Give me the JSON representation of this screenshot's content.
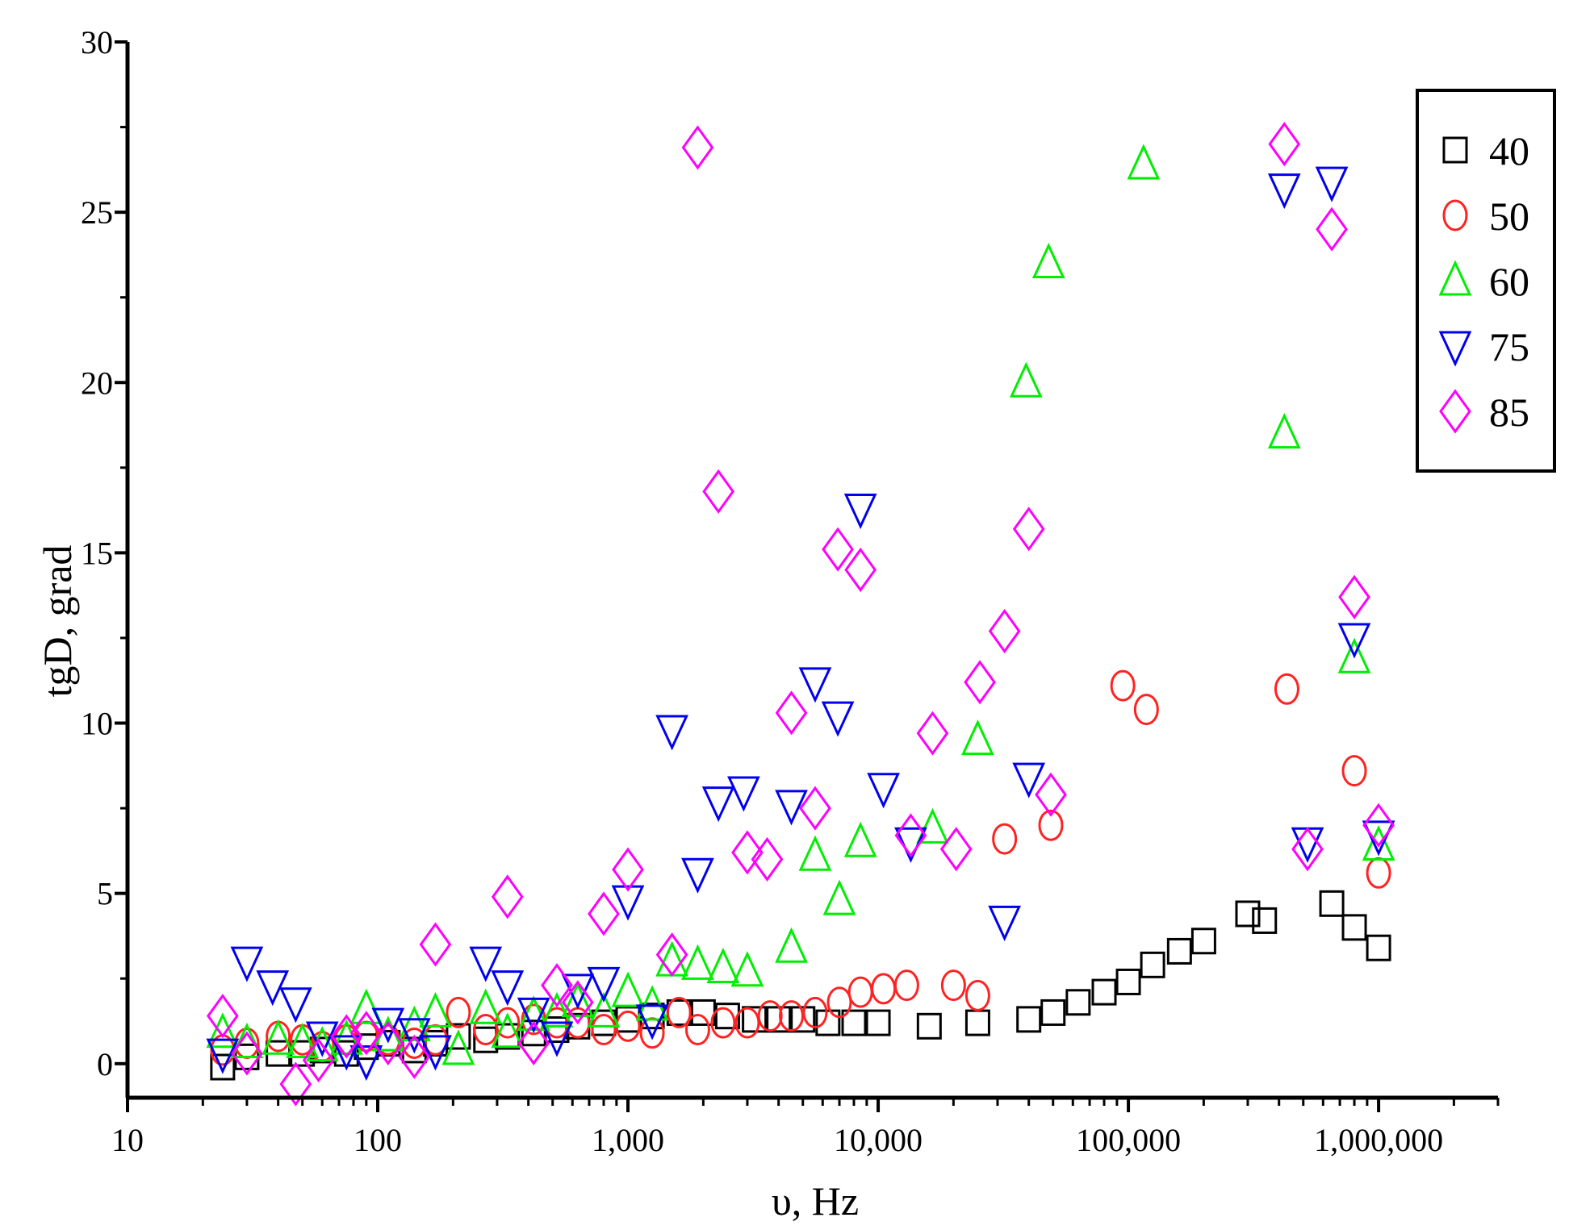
{
  "chart_data": {
    "type": "scatter",
    "xlabel": "υ, Hz",
    "ylabel": "tgD, grad",
    "xscale": "log",
    "xlim": [
      10,
      3000000
    ],
    "ylim": [
      -1,
      30
    ],
    "x_ticks": [
      10,
      100,
      1000,
      10000,
      100000,
      1000000
    ],
    "x_tick_labels": [
      "10",
      "100",
      "1,000",
      "10,000",
      "100,000",
      "1,000,000"
    ],
    "y_ticks": [
      0,
      5,
      10,
      15,
      20,
      25,
      30
    ],
    "y_tick_labels": [
      "0",
      "5",
      "10",
      "15",
      "20",
      "25",
      "30"
    ],
    "legend_position": "top-right",
    "series": [
      {
        "name": "40",
        "marker": "square",
        "color": "#000000",
        "points": [
          [
            24,
            -0.1
          ],
          [
            30,
            0.2
          ],
          [
            40,
            0.3
          ],
          [
            50,
            0.3
          ],
          [
            60,
            0.4
          ],
          [
            75,
            0.3
          ],
          [
            90,
            0.5
          ],
          [
            110,
            0.6
          ],
          [
            140,
            0.4
          ],
          [
            170,
            0.6
          ],
          [
            210,
            0.8
          ],
          [
            270,
            0.7
          ],
          [
            330,
            0.8
          ],
          [
            420,
            0.9
          ],
          [
            520,
            1.0
          ],
          [
            630,
            1.1
          ],
          [
            800,
            1.2
          ],
          [
            1000,
            1.3
          ],
          [
            1250,
            1.4
          ],
          [
            1600,
            1.5
          ],
          [
            2000,
            1.5
          ],
          [
            2500,
            1.4
          ],
          [
            3200,
            1.3
          ],
          [
            4000,
            1.3
          ],
          [
            5000,
            1.3
          ],
          [
            6300,
            1.2
          ],
          [
            8000,
            1.2
          ],
          [
            10000,
            1.2
          ],
          [
            16000,
            1.1
          ],
          [
            25000,
            1.2
          ],
          [
            40000,
            1.3
          ],
          [
            50000,
            1.5
          ],
          [
            63000,
            1.8
          ],
          [
            80000,
            2.1
          ],
          [
            100000,
            2.4
          ],
          [
            125000,
            2.9
          ],
          [
            160000,
            3.3
          ],
          [
            200000,
            3.6
          ],
          [
            300000,
            4.4
          ],
          [
            350000,
            4.2
          ],
          [
            650000,
            4.7
          ],
          [
            800000,
            4.0
          ],
          [
            1000000,
            3.4
          ]
        ]
      },
      {
        "name": "50",
        "marker": "circle",
        "color": "#ff2222",
        "points": [
          [
            24,
            0.4
          ],
          [
            30,
            0.6
          ],
          [
            40,
            0.8
          ],
          [
            50,
            0.7
          ],
          [
            60,
            0.5
          ],
          [
            75,
            0.7
          ],
          [
            90,
            0.8
          ],
          [
            110,
            0.7
          ],
          [
            140,
            0.6
          ],
          [
            170,
            0.7
          ],
          [
            210,
            1.5
          ],
          [
            270,
            1.0
          ],
          [
            330,
            1.2
          ],
          [
            420,
            1.3
          ],
          [
            520,
            1.2
          ],
          [
            630,
            1.2
          ],
          [
            800,
            1.0
          ],
          [
            1000,
            1.1
          ],
          [
            1250,
            0.9
          ],
          [
            1600,
            1.5
          ],
          [
            1900,
            1.0
          ],
          [
            2400,
            1.2
          ],
          [
            3000,
            1.2
          ],
          [
            3700,
            1.4
          ],
          [
            4500,
            1.4
          ],
          [
            5600,
            1.5
          ],
          [
            7000,
            1.8
          ],
          [
            8500,
            2.1
          ],
          [
            10500,
            2.2
          ],
          [
            13000,
            2.3
          ],
          [
            20000,
            2.3
          ],
          [
            25000,
            2.0
          ],
          [
            32000,
            6.6
          ],
          [
            49000,
            7.0
          ],
          [
            95000,
            11.1
          ],
          [
            118000,
            10.4
          ],
          [
            430000,
            11.0
          ],
          [
            800000,
            8.6
          ],
          [
            1000000,
            5.6
          ]
        ]
      },
      {
        "name": "60",
        "marker": "triangle-up",
        "color": "#00ee00",
        "points": [
          [
            24,
            0.9
          ],
          [
            30,
            0.6
          ],
          [
            40,
            0.7
          ],
          [
            50,
            0.6
          ],
          [
            60,
            0.5
          ],
          [
            75,
            0.7
          ],
          [
            90,
            1.6
          ],
          [
            110,
            0.8
          ],
          [
            140,
            1.1
          ],
          [
            170,
            1.5
          ],
          [
            210,
            0.4
          ],
          [
            270,
            1.6
          ],
          [
            330,
            0.9
          ],
          [
            420,
            1.4
          ],
          [
            520,
            1.5
          ],
          [
            630,
            1.8
          ],
          [
            800,
            1.5
          ],
          [
            1000,
            2.1
          ],
          [
            1250,
            1.7
          ],
          [
            1500,
            3.0
          ],
          [
            1900,
            2.9
          ],
          [
            2400,
            2.8
          ],
          [
            3000,
            2.7
          ],
          [
            4500,
            3.4
          ],
          [
            5600,
            6.1
          ],
          [
            7000,
            4.8
          ],
          [
            8500,
            6.5
          ],
          [
            16500,
            6.9
          ],
          [
            25000,
            9.5
          ],
          [
            39000,
            20.0
          ],
          [
            48000,
            23.5
          ],
          [
            115000,
            26.4
          ],
          [
            420000,
            18.5
          ],
          [
            800000,
            11.9
          ],
          [
            1000000,
            6.4
          ]
        ]
      },
      {
        "name": "75",
        "marker": "triangle-down",
        "color": "#0000ee",
        "points": [
          [
            24,
            0.3
          ],
          [
            30,
            3.0
          ],
          [
            38,
            2.3
          ],
          [
            47,
            1.8
          ],
          [
            60,
            0.8
          ],
          [
            75,
            0.4
          ],
          [
            90,
            0.1
          ],
          [
            110,
            1.2
          ],
          [
            140,
            0.9
          ],
          [
            170,
            0.4
          ],
          [
            270,
            3.0
          ],
          [
            330,
            2.3
          ],
          [
            420,
            1.5
          ],
          [
            520,
            0.8
          ],
          [
            630,
            2.2
          ],
          [
            800,
            2.4
          ],
          [
            1000,
            4.8
          ],
          [
            1250,
            1.3
          ],
          [
            1500,
            9.8
          ],
          [
            1900,
            5.6
          ],
          [
            2300,
            7.7
          ],
          [
            2900,
            8.0
          ],
          [
            4500,
            7.6
          ],
          [
            5600,
            11.2
          ],
          [
            6900,
            10.2
          ],
          [
            8500,
            16.3
          ],
          [
            10500,
            8.1
          ],
          [
            13500,
            6.5
          ],
          [
            32000,
            4.2
          ],
          [
            40000,
            8.4
          ],
          [
            420000,
            25.7
          ],
          [
            520000,
            6.5
          ],
          [
            650000,
            25.9
          ],
          [
            800000,
            12.5
          ],
          [
            1000000,
            6.7
          ]
        ]
      },
      {
        "name": "85",
        "marker": "diamond",
        "color": "#ff00ff",
        "points": [
          [
            24,
            1.4
          ],
          [
            30,
            0.3
          ],
          [
            47,
            -0.6
          ],
          [
            58,
            0.1
          ],
          [
            75,
            0.8
          ],
          [
            90,
            0.9
          ],
          [
            110,
            0.6
          ],
          [
            140,
            0.2
          ],
          [
            170,
            3.5
          ],
          [
            330,
            4.9
          ],
          [
            420,
            0.6
          ],
          [
            520,
            2.3
          ],
          [
            630,
            1.8
          ],
          [
            800,
            4.4
          ],
          [
            1000,
            5.7
          ],
          [
            1500,
            3.2
          ],
          [
            1900,
            26.9
          ],
          [
            2300,
            16.8
          ],
          [
            3000,
            6.2
          ],
          [
            3600,
            6.0
          ],
          [
            4500,
            10.3
          ],
          [
            5600,
            7.5
          ],
          [
            6900,
            15.1
          ],
          [
            8500,
            14.5
          ],
          [
            13500,
            6.7
          ],
          [
            16500,
            9.7
          ],
          [
            20500,
            6.3
          ],
          [
            25500,
            11.2
          ],
          [
            32000,
            12.7
          ],
          [
            40000,
            15.7
          ],
          [
            49000,
            7.9
          ],
          [
            420000,
            27.0
          ],
          [
            520000,
            6.3
          ],
          [
            650000,
            24.5
          ],
          [
            800000,
            13.7
          ],
          [
            1000000,
            7.0
          ]
        ]
      }
    ]
  }
}
